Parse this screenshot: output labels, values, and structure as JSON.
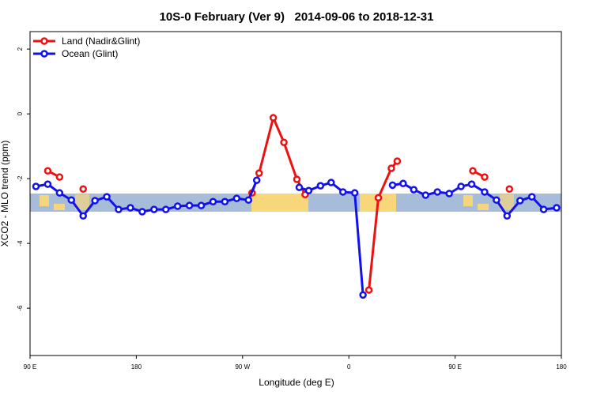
{
  "chart_data": {
    "type": "line",
    "title": "10S-0 February (Ver 9)   2014-09-06 to 2018-12-31",
    "xlabel": "Longitude (deg E)",
    "ylabel": "XCO2 - MLO trend (ppm)",
    "xlim": [
      90,
      540
    ],
    "ylim": [
      -7.46,
      2.54
    ],
    "xticks": [
      {
        "value": 90,
        "label": "90 E"
      },
      180,
      {
        "value": 270,
        "label": "90 W"
      },
      {
        "value": 360,
        "label": "0"
      },
      {
        "value": 450,
        "label": "90 E"
      },
      {
        "value": 540,
        "label": "180"
      }
    ],
    "yticks": [
      2,
      0,
      -2,
      -4,
      -6
    ],
    "legend": "top-left",
    "series": [
      {
        "name": "Land (Nadir&Glint)",
        "color": "#ee1111",
        "x": [
          105,
          115,
          125,
          135,
          145,
          278,
          284,
          296,
          305,
          316,
          323,
          340,
          377,
          385,
          396,
          401,
          410,
          465,
          475,
          485,
          496
        ],
        "values": [
          -1.76,
          -1.95,
          null,
          -2.32,
          null,
          -2.44,
          -1.83,
          -0.12,
          -0.88,
          -2.02,
          -2.49,
          null,
          -5.44,
          -2.59,
          -1.68,
          -1.46,
          null,
          -1.76,
          -1.95,
          null,
          -2.32
        ]
      },
      {
        "name": "Ocean (Glint)",
        "color": "#1111ee",
        "x": [
          95,
          105,
          115,
          125,
          135,
          145,
          155,
          165,
          175,
          185,
          195,
          205,
          215,
          225,
          235,
          245,
          255,
          265,
          275,
          282,
          300,
          318,
          326,
          336,
          345,
          355,
          365,
          372,
          380,
          397,
          406,
          415,
          425,
          435,
          445,
          455,
          464,
          475,
          485,
          494,
          505,
          515,
          525,
          536
        ],
        "values": [
          -2.24,
          -2.17,
          -2.44,
          -2.66,
          -3.15,
          -2.68,
          -2.56,
          -2.95,
          -2.9,
          -3.02,
          -2.95,
          -2.95,
          -2.85,
          -2.83,
          -2.83,
          -2.71,
          -2.71,
          -2.61,
          -2.66,
          -2.05,
          null,
          -2.27,
          -2.37,
          -2.22,
          -2.12,
          -2.41,
          -2.44,
          -5.59,
          null,
          -2.2,
          -2.15,
          -2.34,
          -2.51,
          -2.41,
          -2.46,
          -2.24,
          -2.17,
          -2.41,
          -2.66,
          -3.15,
          -2.68,
          -2.56,
          -2.95,
          -2.9
        ]
      }
    ]
  }
}
